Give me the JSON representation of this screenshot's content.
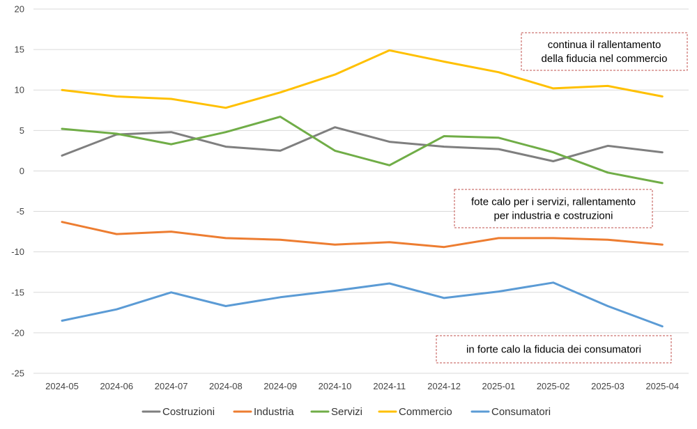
{
  "chart_data": {
    "type": "line",
    "title": "",
    "xlabel": "",
    "ylabel": "",
    "ylim": [
      -25,
      20
    ],
    "y_ticks": [
      20,
      15,
      10,
      5,
      0,
      -5,
      -10,
      -15,
      -20,
      -25
    ],
    "grid": true,
    "legend_position": "bottom",
    "categories": [
      "2024-05",
      "2024-06",
      "2024-07",
      "2024-08",
      "2024-09",
      "2024-10",
      "2024-11",
      "2024-12",
      "2025-01",
      "2025-02",
      "2025-03",
      "2025-04"
    ],
    "series": [
      {
        "name": "Costruzioni",
        "color": "#7f7f7f",
        "values": [
          1.9,
          4.5,
          4.8,
          3.0,
          2.5,
          5.4,
          3.6,
          3.0,
          2.7,
          1.2,
          3.1,
          2.3
        ]
      },
      {
        "name": "Industria",
        "color": "#ed7d31",
        "values": [
          -6.3,
          -7.8,
          -7.5,
          -8.3,
          -8.5,
          -9.1,
          -8.8,
          -9.4,
          -8.3,
          -8.3,
          -8.5,
          -9.1
        ]
      },
      {
        "name": "Servizi",
        "color": "#70ad47",
        "values": [
          5.2,
          4.6,
          3.3,
          4.8,
          6.7,
          2.5,
          0.7,
          4.3,
          4.1,
          2.3,
          -0.2,
          -1.5
        ]
      },
      {
        "name": "Commercio",
        "color": "#ffc000",
        "values": [
          10.0,
          9.2,
          8.9,
          7.8,
          9.7,
          11.9,
          14.9,
          13.5,
          12.2,
          10.2,
          10.5,
          9.2
        ]
      },
      {
        "name": "Consumatori",
        "color": "#5b9bd5",
        "values": [
          -18.5,
          -17.1,
          -15.0,
          -16.7,
          -15.6,
          -14.8,
          -13.9,
          -15.7,
          -14.9,
          -13.8,
          -16.7,
          -19.2
        ]
      }
    ],
    "annotations": [
      {
        "lines": [
          "continua il rallentamento",
          "della fiducia nel commercio"
        ],
        "border_color": "#c0504d"
      },
      {
        "lines": [
          "fote calo per i servizi, rallentamento",
          "per industria e costruzioni"
        ],
        "border_color": "#c0504d"
      },
      {
        "lines": [
          "in  forte calo la fiducia dei consumatori"
        ],
        "border_color": "#c0504d"
      }
    ]
  }
}
